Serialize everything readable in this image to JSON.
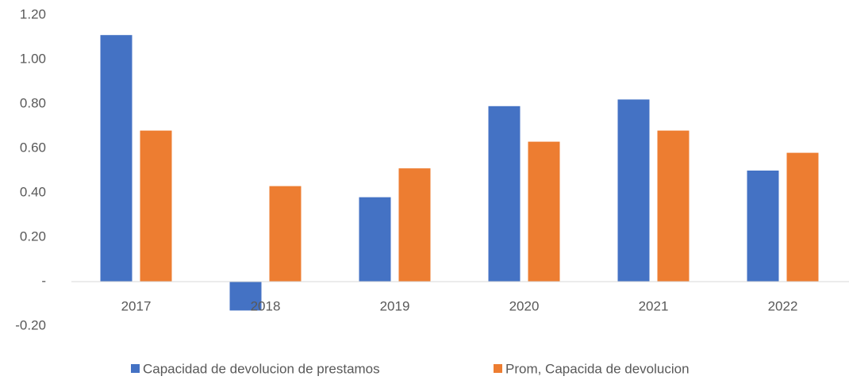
{
  "chart_data": {
    "type": "bar",
    "categories": [
      "2017",
      "2018",
      "2019",
      "2020",
      "2021",
      "2022"
    ],
    "series": [
      {
        "name": "Capacidad de devolucion de prestamos",
        "color": "#4472c4",
        "values": [
          1.11,
          -0.13,
          0.38,
          0.79,
          0.82,
          0.5
        ]
      },
      {
        "name": "Prom, Capacida de devolucion",
        "color": "#ed7d31",
        "values": [
          0.68,
          0.43,
          0.51,
          0.63,
          0.68,
          0.58
        ]
      }
    ],
    "ylim": [
      -0.2,
      1.2
    ],
    "yticks": [
      {
        "value": -0.2,
        "label": "-0.20"
      },
      {
        "value": 0,
        "label": "-"
      },
      {
        "value": 0.2,
        "label": "0.20"
      },
      {
        "value": 0.4,
        "label": "0.40"
      },
      {
        "value": 0.6,
        "label": "0.60"
      },
      {
        "value": 0.8,
        "label": "0.80"
      },
      {
        "value": 1.0,
        "label": "1.00"
      },
      {
        "value": 1.2,
        "label": "1.20"
      }
    ],
    "grid": false,
    "legend": "bottom"
  }
}
